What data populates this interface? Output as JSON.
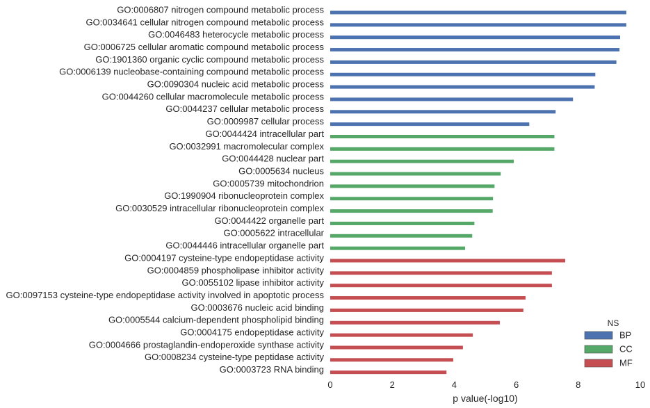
{
  "chart_data": {
    "type": "bar",
    "orientation": "horizontal",
    "title": "",
    "xlabel": "p value(-log10)",
    "ylabel": "",
    "xlim": [
      0,
      10
    ],
    "xticks": [
      0,
      2,
      4,
      6,
      8,
      10
    ],
    "grid": false,
    "legend": {
      "title": "NS",
      "placement": "bottom-right",
      "entries": [
        {
          "name": "BP",
          "color": "#4c72b0"
        },
        {
          "name": "CC",
          "color": "#55a868"
        },
        {
          "name": "MF",
          "color": "#c44e52"
        }
      ]
    },
    "categories": [
      "GO:0006807 nitrogen compound metabolic process",
      "GO:0034641 cellular nitrogen compound metabolic process",
      "GO:0046483 heterocycle metabolic process",
      "GO:0006725 cellular aromatic compound metabolic process",
      "GO:1901360 organic cyclic compound metabolic process",
      "GO:0006139 nucleobase-containing compound metabolic process",
      "GO:0090304 nucleic acid metabolic process",
      "GO:0044260 cellular macromolecule metabolic process",
      "GO:0044237 cellular metabolic process",
      "GO:0009987 cellular process",
      "GO:0044424 intracellular part",
      "GO:0032991 macromolecular complex",
      "GO:0044428 nuclear part",
      "GO:0005634 nucleus",
      "GO:0005739 mitochondrion",
      "GO:1990904 ribonucleoprotein complex",
      "GO:0030529 intracellular ribonucleoprotein complex",
      "GO:0044422 organelle part",
      "GO:0005622 intracellular",
      "GO:0044446 intracellular organelle part",
      "GO:0004197 cysteine-type endopeptidase activity",
      "GO:0004859 phospholipase inhibitor activity",
      "GO:0055102 lipase inhibitor activity",
      "GO:0097153 cysteine-type endopeptidase activity involved in apoptotic process",
      "GO:0003676 nucleic acid binding",
      "GO:0005544 calcium-dependent phospholipid binding",
      "GO:0004175 endopeptidase activity",
      "GO:0004666 prostaglandin-endoperoxide synthase activity",
      "GO:0008234 cysteine-type peptidase activity",
      "GO:0003723 RNA binding"
    ],
    "values": [
      9.55,
      9.55,
      9.35,
      9.33,
      9.23,
      8.55,
      8.53,
      7.83,
      7.27,
      6.42,
      7.23,
      7.23,
      5.92,
      5.5,
      5.3,
      5.25,
      5.24,
      4.65,
      4.58,
      4.35,
      7.58,
      7.15,
      7.15,
      6.3,
      6.23,
      5.47,
      4.6,
      4.28,
      3.97,
      3.75
    ],
    "groups": [
      "BP",
      "BP",
      "BP",
      "BP",
      "BP",
      "BP",
      "BP",
      "BP",
      "BP",
      "BP",
      "CC",
      "CC",
      "CC",
      "CC",
      "CC",
      "CC",
      "CC",
      "CC",
      "CC",
      "CC",
      "MF",
      "MF",
      "MF",
      "MF",
      "MF",
      "MF",
      "MF",
      "MF",
      "MF",
      "MF"
    ]
  }
}
